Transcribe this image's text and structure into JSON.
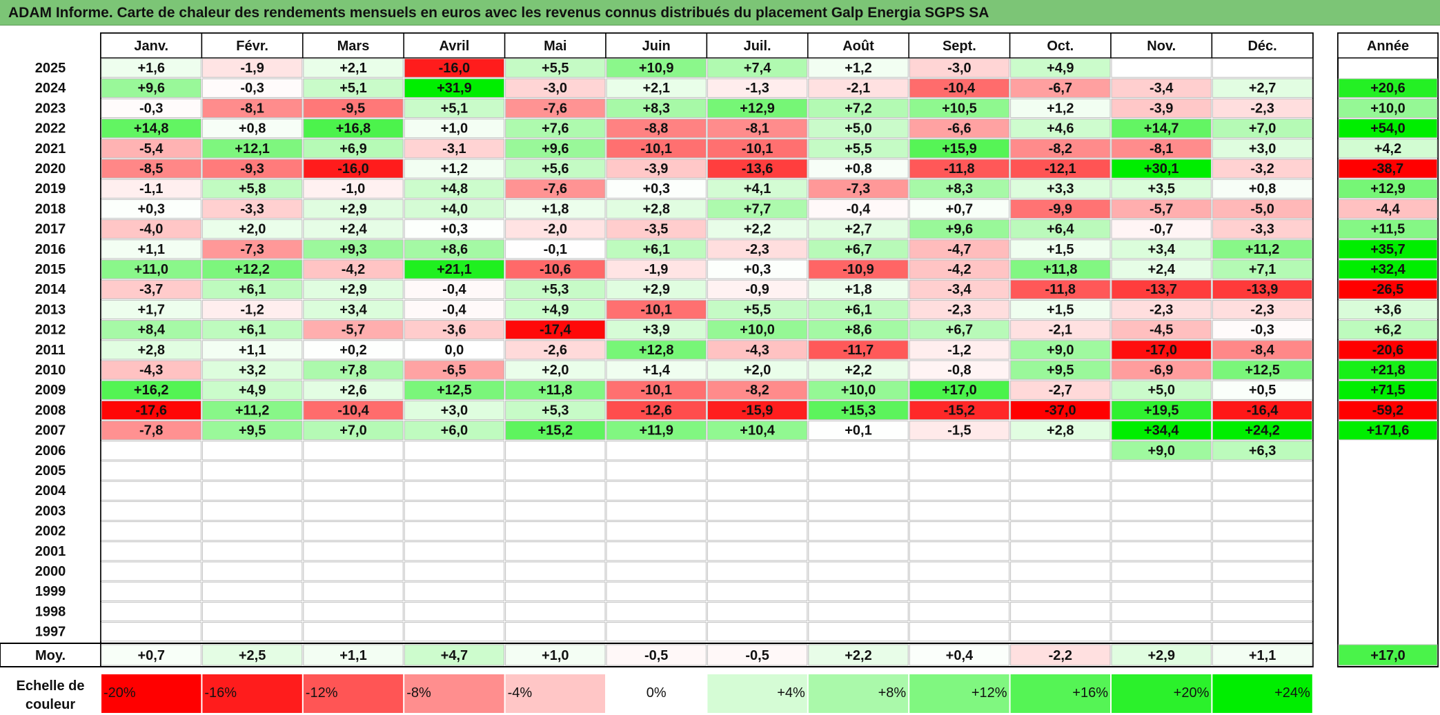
{
  "title": "ADAM Informe. Carte de chaleur des rendements mensuels en euros avec les revenus connus distribués du placement Galp Energia SGPS SA",
  "chart_data": {
    "type": "heatmap",
    "title": "ADAM Informe. Carte de chaleur des rendements mensuels en euros avec les revenus connus distribués du placement Galp Energia SGPS SA",
    "months": [
      "Janv.",
      "Févr.",
      "Mars",
      "Avril",
      "Mai",
      "Juin",
      "Juil.",
      "Août",
      "Sept.",
      "Oct.",
      "Nov.",
      "Déc."
    ],
    "year_header": "Année",
    "years": [
      2025,
      2024,
      2023,
      2022,
      2021,
      2020,
      2019,
      2018,
      2017,
      2016,
      2015,
      2014,
      2013,
      2012,
      2011,
      2010,
      2009,
      2008,
      2007,
      2006,
      2005,
      2004,
      2003,
      2002,
      2001,
      2000,
      1999,
      1998,
      1997
    ],
    "rows": [
      {
        "values": [
          "+1,6",
          "-1,9",
          "+2,1",
          "-16,0",
          "+5,5",
          "+10,9",
          "+7,4",
          "+1,2",
          "-3,0",
          "+4,9",
          "",
          ""
        ],
        "annual": ""
      },
      {
        "values": [
          "+9,6",
          "-0,3",
          "+5,1",
          "+31,9",
          "-3,0",
          "+2,1",
          "-1,3",
          "-2,1",
          "-10,4",
          "-6,7",
          "-3,4",
          "+2,7"
        ],
        "annual": "+20,6"
      },
      {
        "values": [
          "-0,3",
          "-8,1",
          "-9,5",
          "+5,1",
          "-7,6",
          "+8,3",
          "+12,9",
          "+7,2",
          "+10,5",
          "+1,2",
          "-3,9",
          "-2,3"
        ],
        "annual": "+10,0"
      },
      {
        "values": [
          "+14,8",
          "+0,8",
          "+16,8",
          "+1,0",
          "+7,6",
          "-8,8",
          "-8,1",
          "+5,0",
          "-6,6",
          "+4,6",
          "+14,7",
          "+7,0"
        ],
        "annual": "+54,0"
      },
      {
        "values": [
          "-5,4",
          "+12,1",
          "+6,9",
          "-3,1",
          "+9,6",
          "-10,1",
          "-10,1",
          "+5,5",
          "+15,9",
          "-8,2",
          "-8,1",
          "+3,0"
        ],
        "annual": "+4,2"
      },
      {
        "values": [
          "-8,5",
          "-9,3",
          "-16,0",
          "+1,2",
          "+5,6",
          "-3,9",
          "-13,6",
          "+0,8",
          "-11,8",
          "-12,1",
          "+30,1",
          "-3,2"
        ],
        "annual": "-38,7"
      },
      {
        "values": [
          "-1,1",
          "+5,8",
          "-1,0",
          "+4,8",
          "-7,6",
          "+0,3",
          "+4,1",
          "-7,3",
          "+8,3",
          "+3,3",
          "+3,5",
          "+0,8"
        ],
        "annual": "+12,9"
      },
      {
        "values": [
          "+0,3",
          "-3,3",
          "+2,9",
          "+4,0",
          "+1,8",
          "+2,8",
          "+7,7",
          "-0,4",
          "+0,7",
          "-9,9",
          "-5,7",
          "-5,0"
        ],
        "annual": "-4,4"
      },
      {
        "values": [
          "-4,0",
          "+2,0",
          "+2,4",
          "+0,3",
          "-2,0",
          "-3,5",
          "+2,2",
          "+2,7",
          "+9,6",
          "+6,4",
          "-0,7",
          "-3,3"
        ],
        "annual": "+11,5"
      },
      {
        "values": [
          "+1,1",
          "-7,3",
          "+9,3",
          "+8,6",
          "-0,1",
          "+6,1",
          "-2,3",
          "+6,7",
          "-4,7",
          "+1,5",
          "+3,4",
          "+11,2"
        ],
        "annual": "+35,7"
      },
      {
        "values": [
          "+11,0",
          "+12,2",
          "-4,2",
          "+21,1",
          "-10,6",
          "-1,9",
          "+0,3",
          "-10,9",
          "-4,2",
          "+11,8",
          "+2,4",
          "+7,1"
        ],
        "annual": "+32,4"
      },
      {
        "values": [
          "-3,7",
          "+6,1",
          "+2,9",
          "-0,4",
          "+5,3",
          "+2,9",
          "-0,9",
          "+1,8",
          "-3,4",
          "-11,8",
          "-13,7",
          "-13,9"
        ],
        "annual": "-26,5"
      },
      {
        "values": [
          "+1,7",
          "-1,2",
          "+3,4",
          "-0,4",
          "+4,9",
          "-10,1",
          "+5,5",
          "+6,1",
          "-2,3",
          "+1,5",
          "-2,3",
          "-2,3"
        ],
        "annual": "+3,6"
      },
      {
        "values": [
          "+8,4",
          "+6,1",
          "-5,7",
          "-3,6",
          "-17,4",
          "+3,9",
          "+10,0",
          "+8,6",
          "+6,7",
          "-2,1",
          "-4,5",
          "-0,3"
        ],
        "annual": "+6,2"
      },
      {
        "values": [
          "+2,8",
          "+1,1",
          "+0,2",
          "0,0",
          "-2,6",
          "+12,8",
          "-4,3",
          "-11,7",
          "-1,2",
          "+9,0",
          "-17,0",
          "-8,4"
        ],
        "annual": "-20,6"
      },
      {
        "values": [
          "-4,3",
          "+3,2",
          "+7,8",
          "-6,5",
          "+2,0",
          "+1,4",
          "+2,0",
          "+2,2",
          "-0,8",
          "+9,5",
          "-6,9",
          "+12,5"
        ],
        "annual": "+21,8"
      },
      {
        "values": [
          "+16,2",
          "+4,9",
          "+2,6",
          "+12,5",
          "+11,8",
          "-10,1",
          "-8,2",
          "+10,0",
          "+17,0",
          "-2,7",
          "+5,0",
          "+0,5"
        ],
        "annual": "+71,5"
      },
      {
        "values": [
          "-17,6",
          "+11,2",
          "-10,4",
          "+3,0",
          "+5,3",
          "-12,6",
          "-15,9",
          "+15,3",
          "-15,2",
          "-37,0",
          "+19,5",
          "-16,4"
        ],
        "annual": "-59,2"
      },
      {
        "values": [
          "-7,8",
          "+9,5",
          "+7,0",
          "+6,0",
          "+15,2",
          "+11,9",
          "+10,4",
          "+0,1",
          "-1,5",
          "+2,8",
          "+34,4",
          "+24,2"
        ],
        "annual": "+171,6"
      },
      {
        "values": [
          "",
          "",
          "",
          "",
          "",
          "",
          "",
          "",
          "",
          "",
          "+9,0",
          "+6,3"
        ],
        "annual": ""
      },
      {
        "values": [
          "",
          "",
          "",
          "",
          "",
          "",
          "",
          "",
          "",
          "",
          "",
          ""
        ],
        "annual": ""
      },
      {
        "values": [
          "",
          "",
          "",
          "",
          "",
          "",
          "",
          "",
          "",
          "",
          "",
          ""
        ],
        "annual": ""
      },
      {
        "values": [
          "",
          "",
          "",
          "",
          "",
          "",
          "",
          "",
          "",
          "",
          "",
          ""
        ],
        "annual": ""
      },
      {
        "values": [
          "",
          "",
          "",
          "",
          "",
          "",
          "",
          "",
          "",
          "",
          "",
          ""
        ],
        "annual": ""
      },
      {
        "values": [
          "",
          "",
          "",
          "",
          "",
          "",
          "",
          "",
          "",
          "",
          "",
          ""
        ],
        "annual": ""
      },
      {
        "values": [
          "",
          "",
          "",
          "",
          "",
          "",
          "",
          "",
          "",
          "",
          "",
          ""
        ],
        "annual": ""
      },
      {
        "values": [
          "",
          "",
          "",
          "",
          "",
          "",
          "",
          "",
          "",
          "",
          "",
          ""
        ],
        "annual": ""
      },
      {
        "values": [
          "",
          "",
          "",
          "",
          "",
          "",
          "",
          "",
          "",
          "",
          "",
          ""
        ],
        "annual": ""
      },
      {
        "values": [
          "",
          "",
          "",
          "",
          "",
          "",
          "",
          "",
          "",
          "",
          "",
          ""
        ],
        "annual": ""
      }
    ],
    "average": {
      "label": "Moy.",
      "values": [
        "+0,7",
        "+2,5",
        "+1,1",
        "+4,7",
        "+1,0",
        "-0,5",
        "-0,5",
        "+2,2",
        "+0,4",
        "-2,2",
        "+2,9",
        "+1,1"
      ],
      "annual": "+17,0"
    },
    "scale": {
      "label_line1": "Echelle de",
      "label_line2": "couleur",
      "items": [
        "-20%",
        "-16%",
        "-12%",
        "-8%",
        "-4%",
        "0%",
        "+4%",
        "+8%",
        "+12%",
        "+16%",
        "+20%",
        "+24%"
      ]
    },
    "colors": {
      "negative_max": "#ff0000",
      "positive_max": "#00ee00",
      "neutral": "#ffffff",
      "title_bg": "#7cc576"
    }
  }
}
